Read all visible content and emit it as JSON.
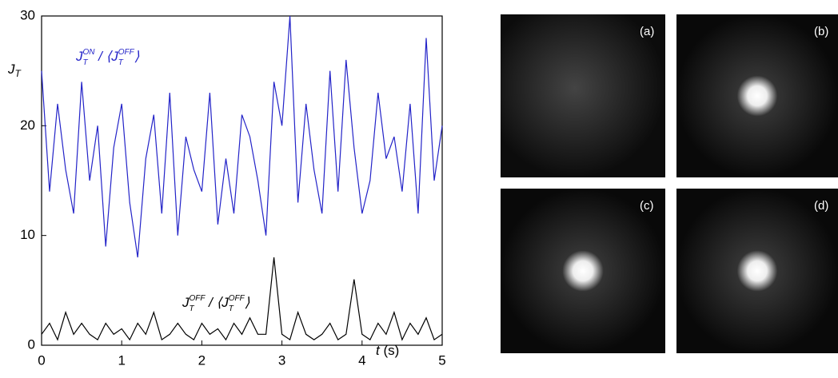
{
  "chart_data": {
    "type": "line",
    "y_label": [
      "J",
      "T"
    ],
    "x_label": [
      "t",
      "(s)"
    ],
    "x": [
      0,
      0.1,
      0.2,
      0.3,
      0.4,
      0.5,
      0.6,
      0.7,
      0.8,
      0.9,
      1,
      1.1,
      1.2,
      1.3,
      1.4,
      1.5,
      1.6,
      1.7,
      1.8,
      1.9,
      2,
      2.1,
      2.2,
      2.3,
      2.4,
      2.5,
      2.6,
      2.7,
      2.8,
      2.9,
      3,
      3.1,
      3.2,
      3.3,
      3.4,
      3.5,
      3.6,
      3.7,
      3.8,
      3.9,
      4,
      4.1,
      4.2,
      4.3,
      4.4,
      4.5,
      4.6,
      4.7,
      4.8,
      4.9,
      5
    ],
    "series": [
      {
        "name": [
          "J",
          "T",
          "ON",
          " / ⟨J",
          "T",
          "OFF",
          "⟩"
        ],
        "color": "#2323c8",
        "values": [
          25,
          14,
          22,
          16,
          12,
          24,
          15,
          20,
          9,
          18,
          22,
          13,
          8,
          17,
          21,
          12,
          23,
          10,
          19,
          16,
          14,
          23,
          11,
          17,
          12,
          21,
          19,
          15,
          10,
          24,
          20,
          30,
          13,
          22,
          16,
          12,
          25,
          14,
          26,
          18,
          12,
          15,
          23,
          17,
          19,
          14,
          22,
          12,
          28,
          15,
          20
        ]
      },
      {
        "name": [
          "J",
          "T",
          "OFF",
          " / ⟨J",
          "T",
          "OFF",
          "⟩"
        ],
        "color": "#000000",
        "values": [
          1,
          2,
          0.5,
          3,
          1,
          2,
          1,
          0.5,
          2,
          1,
          1.5,
          0.5,
          2,
          1,
          3,
          0.5,
          1,
          2,
          1,
          0.5,
          2,
          1,
          1.5,
          0.5,
          2,
          1,
          2.5,
          1,
          1,
          8,
          1,
          0.5,
          3,
          1,
          0.5,
          1,
          2,
          0.5,
          1,
          6,
          1,
          0.5,
          2,
          1,
          3,
          0.5,
          2,
          1,
          2.5,
          0.5,
          1
        ]
      }
    ],
    "xlim": [
      0,
      5
    ],
    "xticks": [
      0,
      1,
      2,
      3,
      4,
      5
    ],
    "ylim": [
      0,
      30
    ],
    "yticks": [
      0,
      10,
      20,
      30
    ]
  },
  "panels": [
    "(a)",
    "(b)",
    "(c)",
    "(d)"
  ]
}
